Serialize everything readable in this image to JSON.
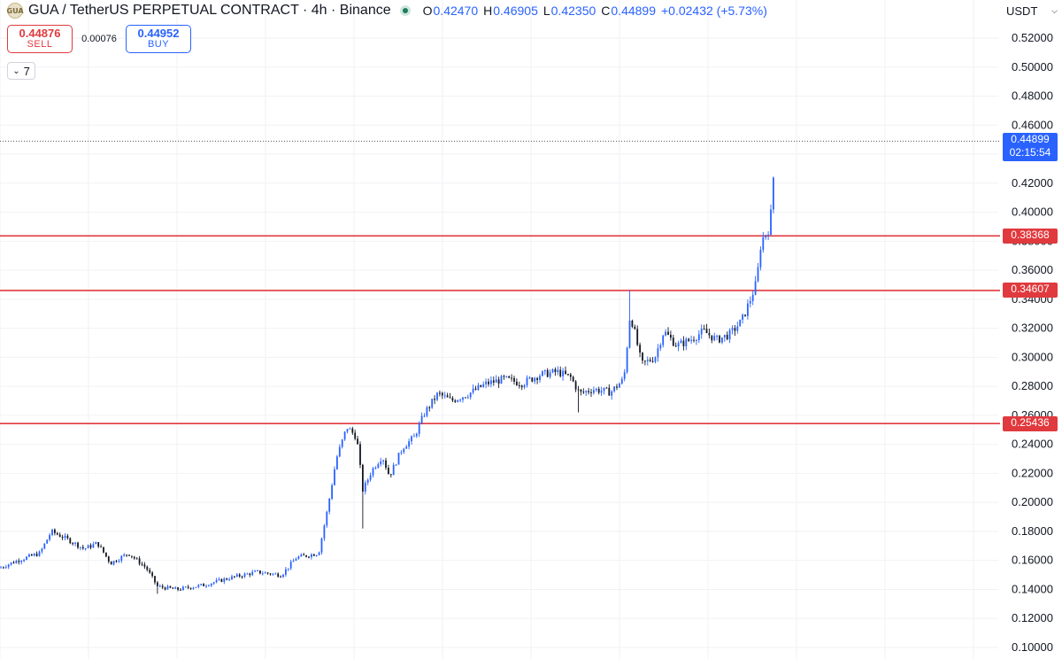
{
  "header": {
    "symbol_icon": "GUA",
    "title": "GUA / TetherUS PERPETUAL CONTRACT · 4h · Binance",
    "ohlc": {
      "o_label": "O",
      "o": "0.42470",
      "h_label": "H",
      "h": "0.46905",
      "l_label": "L",
      "l": "0.42350",
      "c_label": "C",
      "c": "0.44899",
      "change": "+0.02432 (+5.73%)"
    }
  },
  "trade": {
    "sell_price": "0.44876",
    "sell_label": "SELL",
    "spread": "0.00076",
    "buy_price": "0.44952",
    "buy_label": "BUY"
  },
  "indicators_toggle": {
    "count": "7"
  },
  "price_axis": {
    "currency": "USDT"
  },
  "colors": {
    "up": "#2962ff",
    "down": "#131722",
    "line": "#e03a3e",
    "last": "#2962ff",
    "grid": "#f0f2f5"
  },
  "chart_data": {
    "type": "candlestick",
    "y_ticks": [
      "0.52000",
      "0.50000",
      "0.48000",
      "0.46000",
      "0.44000",
      "0.42000",
      "0.40000",
      "0.38000",
      "0.36000",
      "0.34000",
      "0.32000",
      "0.30000",
      "0.28000",
      "0.26000",
      "0.24000",
      "0.22000",
      "0.20000",
      "0.18000",
      "0.16000",
      "0.14000",
      "0.12000",
      "0.10000"
    ],
    "ylim": [
      0.09,
      0.53
    ],
    "horizontal_lines": [
      {
        "label": "0.38368",
        "value": 0.38368
      },
      {
        "label": "0.34607",
        "value": 0.34607
      },
      {
        "label": "0.25436",
        "value": 0.25436
      }
    ],
    "last_price": {
      "label": "0.44899",
      "countdown": "02:15:54",
      "value": 0.44899
    },
    "price_path": [
      [
        0,
        0.155
      ],
      [
        20,
        0.16
      ],
      [
        45,
        0.165
      ],
      [
        58,
        0.18
      ],
      [
        75,
        0.175
      ],
      [
        95,
        0.168
      ],
      [
        110,
        0.172
      ],
      [
        125,
        0.158
      ],
      [
        145,
        0.165
      ],
      [
        165,
        0.155
      ],
      [
        178,
        0.142
      ],
      [
        200,
        0.14
      ],
      [
        230,
        0.143
      ],
      [
        260,
        0.148
      ],
      [
        290,
        0.152
      ],
      [
        318,
        0.15
      ],
      [
        335,
        0.162
      ],
      [
        360,
        0.165
      ],
      [
        370,
        0.195
      ],
      [
        380,
        0.23
      ],
      [
        392,
        0.252
      ],
      [
        403,
        0.245
      ],
      [
        410,
        0.208
      ],
      [
        420,
        0.222
      ],
      [
        432,
        0.232
      ],
      [
        440,
        0.218
      ],
      [
        455,
        0.238
      ],
      [
        468,
        0.245
      ],
      [
        480,
        0.262
      ],
      [
        495,
        0.275
      ],
      [
        510,
        0.27
      ],
      [
        530,
        0.275
      ],
      [
        550,
        0.282
      ],
      [
        570,
        0.285
      ],
      [
        590,
        0.282
      ],
      [
        610,
        0.288
      ],
      [
        630,
        0.29
      ],
      [
        645,
        0.286
      ],
      [
        655,
        0.275
      ],
      [
        670,
        0.278
      ],
      [
        690,
        0.276
      ],
      [
        705,
        0.285
      ],
      [
        712,
        0.33
      ],
      [
        718,
        0.315
      ],
      [
        725,
        0.295
      ],
      [
        740,
        0.3
      ],
      [
        750,
        0.318
      ],
      [
        765,
        0.308
      ],
      [
        780,
        0.312
      ],
      [
        795,
        0.318
      ],
      [
        810,
        0.312
      ],
      [
        825,
        0.316
      ],
      [
        838,
        0.325
      ],
      [
        848,
        0.34
      ],
      [
        855,
        0.352
      ],
      [
        860,
        0.38
      ],
      [
        866,
        0.386
      ],
      [
        870,
        0.39
      ],
      [
        874,
        0.425
      ],
      [
        876,
        0.449
      ]
    ]
  }
}
